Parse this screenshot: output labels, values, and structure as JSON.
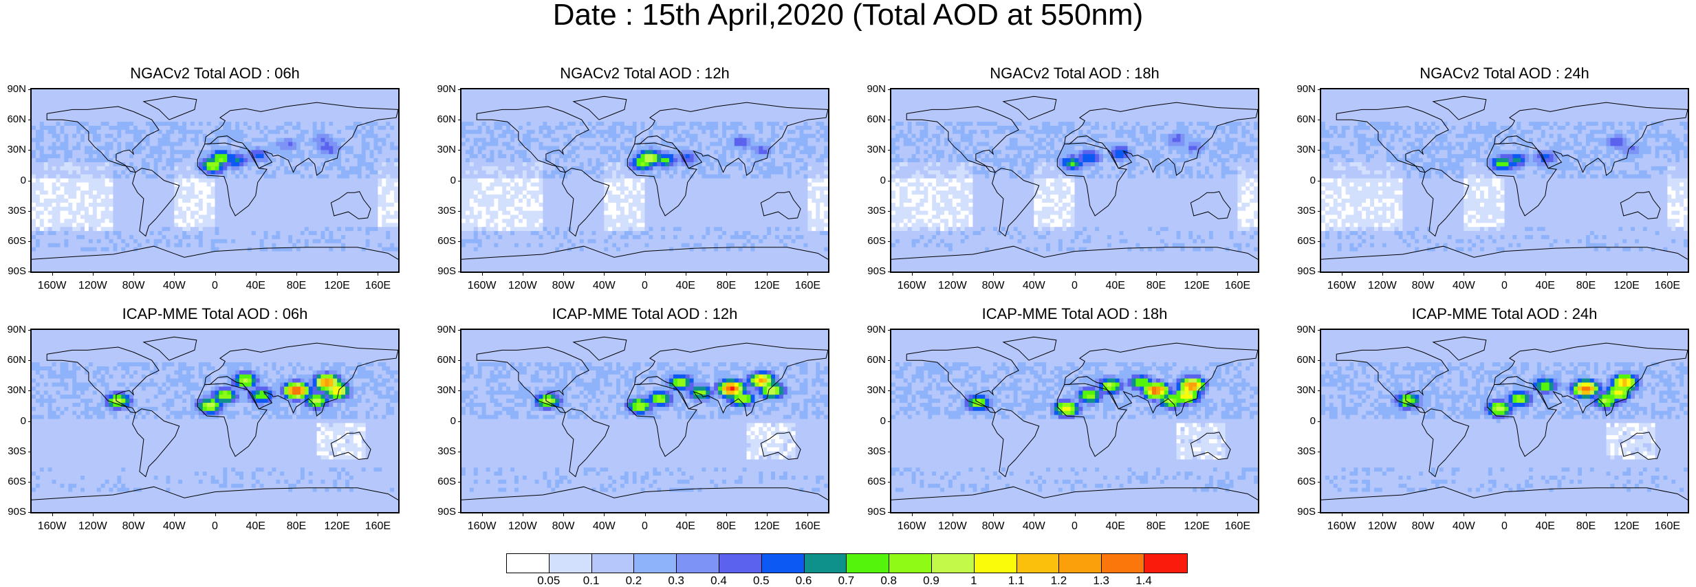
{
  "title": "Date : 15th April,2020 (Total AOD at 550nm)",
  "panels": [
    {
      "title": "NGACv2 Total AOD : 06h",
      "model": "NGACv2",
      "hour": "06h",
      "hotspots": [
        [
          -2,
          15,
          0.9
        ],
        [
          6,
          22,
          0.8
        ],
        [
          20,
          20,
          0.6
        ],
        [
          42,
          25,
          0.5
        ],
        [
          105,
          40,
          0.4
        ],
        [
          112,
          32,
          0.45
        ],
        [
          70,
          35,
          0.4
        ]
      ]
    },
    {
      "title": "NGACv2 Total AOD : 12h",
      "model": "NGACv2",
      "hour": "12h",
      "hotspots": [
        [
          5,
          22,
          1.0
        ],
        [
          -2,
          17,
          0.8
        ],
        [
          20,
          20,
          0.7
        ],
        [
          42,
          22,
          0.5
        ],
        [
          95,
          38,
          0.45
        ],
        [
          115,
          30,
          0.4
        ]
      ]
    },
    {
      "title": "NGACv2 Total AOD : 18h",
      "model": "NGACv2",
      "hour": "18h",
      "hotspots": [
        [
          -2,
          17,
          0.7
        ],
        [
          15,
          23,
          0.6
        ],
        [
          45,
          27,
          0.55
        ],
        [
          100,
          40,
          0.45
        ],
        [
          118,
          33,
          0.4
        ]
      ]
    },
    {
      "title": "NGACv2 Total AOD : 24h",
      "model": "NGACv2",
      "hour": "24h",
      "hotspots": [
        [
          -2,
          17,
          0.75
        ],
        [
          12,
          20,
          0.6
        ],
        [
          40,
          22,
          0.5
        ],
        [
          110,
          38,
          0.45
        ],
        [
          125,
          30,
          0.4
        ]
      ]
    },
    {
      "title": "ICAP-MME Total AOD : 06h",
      "model": "ICAP-MME",
      "hour": "06h",
      "hotspots": [
        [
          -95,
          20,
          0.9
        ],
        [
          -5,
          15,
          0.95
        ],
        [
          10,
          25,
          0.85
        ],
        [
          30,
          40,
          0.9
        ],
        [
          45,
          25,
          0.8
        ],
        [
          80,
          30,
          1.4
        ],
        [
          110,
          38,
          1.3
        ],
        [
          120,
          30,
          1.1
        ],
        [
          100,
          20,
          0.9
        ]
      ]
    },
    {
      "title": "ICAP-MME Total AOD : 12h",
      "model": "ICAP-MME",
      "hour": "12h",
      "hotspots": [
        [
          -95,
          20,
          0.9
        ],
        [
          -5,
          15,
          0.9
        ],
        [
          15,
          22,
          0.85
        ],
        [
          35,
          38,
          0.9
        ],
        [
          55,
          28,
          0.8
        ],
        [
          85,
          32,
          1.4
        ],
        [
          115,
          40,
          1.2
        ],
        [
          125,
          30,
          1.0
        ],
        [
          95,
          22,
          0.9
        ]
      ]
    },
    {
      "title": "ICAP-MME Total AOD : 18h",
      "model": "ICAP-MME",
      "hour": "18h",
      "hotspots": [
        [
          -95,
          18,
          0.85
        ],
        [
          -8,
          12,
          1.0
        ],
        [
          15,
          25,
          0.85
        ],
        [
          35,
          35,
          0.9
        ],
        [
          65,
          38,
          0.8
        ],
        [
          80,
          30,
          1.35
        ],
        [
          115,
          35,
          1.3
        ],
        [
          110,
          25,
          1.1
        ],
        [
          95,
          20,
          0.9
        ]
      ]
    },
    {
      "title": "ICAP-MME Total AOD : 24h",
      "model": "ICAP-MME",
      "hour": "24h",
      "hotspots": [
        [
          -95,
          20,
          0.85
        ],
        [
          -5,
          12,
          0.95
        ],
        [
          15,
          22,
          0.85
        ],
        [
          40,
          35,
          0.8
        ],
        [
          80,
          32,
          1.35
        ],
        [
          118,
          38,
          1.2
        ],
        [
          112,
          28,
          1.0
        ],
        [
          100,
          20,
          0.9
        ]
      ]
    }
  ],
  "y_axis_labels": [
    "90N",
    "60N",
    "30N",
    "0",
    "30S",
    "60S",
    "90S"
  ],
  "x_axis_labels": [
    "160W",
    "120W",
    "80W",
    "40W",
    "0",
    "40E",
    "80E",
    "120E",
    "160E"
  ],
  "x_axis_values": [
    -160,
    -120,
    -80,
    -40,
    0,
    40,
    80,
    120,
    160
  ],
  "colorbar": {
    "colors": [
      "#ffffff",
      "#d2dffd",
      "#b6c7fb",
      "#8fb3fa",
      "#7e93f6",
      "#5a62ee",
      "#0d59f4",
      "#0d918a",
      "#54f40c",
      "#8ffa15",
      "#c3fa4a",
      "#fafa0b",
      "#fbc00b",
      "#fb9f0b",
      "#fb770b",
      "#fb1b0c"
    ],
    "labels": [
      "0.05",
      "0.1",
      "0.2",
      "0.3",
      "0.4",
      "0.5",
      "0.6",
      "0.7",
      "0.8",
      "0.9",
      "1",
      "1.1",
      "1.2",
      "1.3",
      "1.4"
    ],
    "levels": [
      0.05,
      0.1,
      0.2,
      0.3,
      0.4,
      0.5,
      0.6,
      0.7,
      0.8,
      0.9,
      1,
      1.1,
      1.2,
      1.3,
      1.4
    ]
  }
}
